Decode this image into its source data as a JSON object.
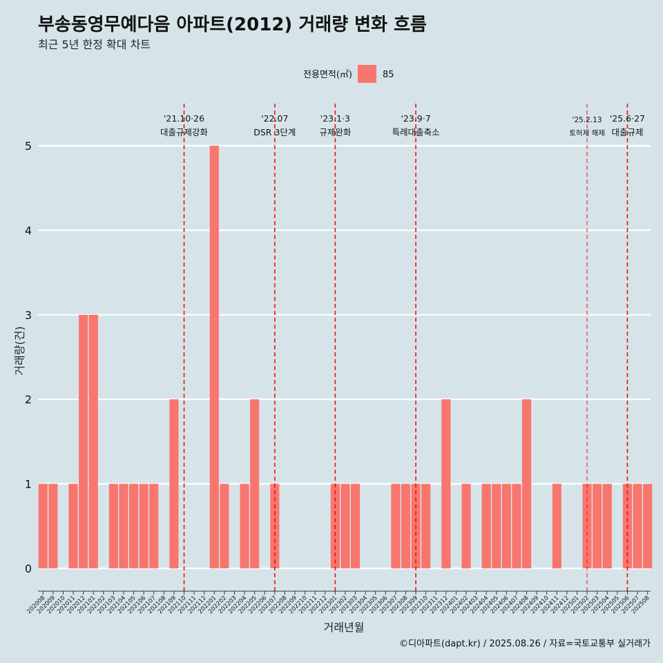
{
  "title": "부송동영무예다음 아파트(2012) 거래량 변화 흐름",
  "subtitle": "최근 5년 한정 확대 차트",
  "caption": "©디아파트(dapt.kr) / 2025.08.26 / 자료=국토교통부 실거래가",
  "legend": {
    "title": "전용면적(㎡)",
    "items": [
      {
        "label": "85",
        "color": "#f8766d"
      }
    ]
  },
  "chart_data": {
    "type": "bar",
    "xlabel": "거래년월",
    "ylabel": "거래량(건)",
    "ylim": [
      0,
      5
    ],
    "yticks": [
      0,
      1,
      2,
      3,
      4,
      5
    ],
    "grid": "horizontal",
    "legend_position": "top",
    "categories": [
      "202008",
      "202009",
      "202010",
      "202011",
      "202012",
      "202101",
      "202102",
      "202103",
      "202104",
      "202105",
      "202106",
      "202107",
      "202108",
      "202109",
      "202110",
      "202111",
      "202112",
      "202201",
      "202202",
      "202203",
      "202204",
      "202205",
      "202206",
      "202207",
      "202208",
      "202209",
      "202210",
      "202211",
      "202212",
      "202301",
      "202302",
      "202303",
      "202304",
      "202305",
      "202306",
      "202307",
      "202308",
      "202309",
      "202310",
      "202311",
      "202312",
      "202401",
      "202402",
      "202403",
      "202404",
      "202405",
      "202406",
      "202407",
      "202408",
      "202409",
      "202410",
      "202411",
      "202412",
      "202501",
      "202502",
      "202503",
      "202504",
      "202505",
      "202506",
      "202507",
      "202508"
    ],
    "series": [
      {
        "name": "85",
        "color": "#f8766d",
        "values": [
          1,
          1,
          0,
          1,
          3,
          3,
          0,
          1,
          1,
          1,
          1,
          1,
          0,
          2,
          0,
          0,
          0,
          5,
          1,
          0,
          1,
          2,
          0,
          1,
          0,
          0,
          0,
          0,
          0,
          1,
          1,
          1,
          0,
          0,
          0,
          1,
          1,
          1,
          1,
          0,
          2,
          0,
          1,
          0,
          1,
          1,
          1,
          1,
          2,
          0,
          0,
          1,
          0,
          0,
          1,
          1,
          1,
          0,
          1,
          1,
          1
        ]
      }
    ],
    "annotations": [
      {
        "date": "202110",
        "label_top": "'21.10·26",
        "label_bottom": "대출규제강화",
        "style": "major"
      },
      {
        "date": "202207",
        "label_top": "'22.07",
        "label_bottom": "DSR 3단계",
        "style": "major"
      },
      {
        "date": "202301",
        "label_top": "'23.1·3",
        "label_bottom": "규제완화",
        "style": "major"
      },
      {
        "date": "202309",
        "label_top": "'23.9·7",
        "label_bottom": "특례대출축소",
        "style": "major"
      },
      {
        "date": "202502",
        "label_top": "'25.2.13",
        "label_bottom": "토허제 해제",
        "style": "minor"
      },
      {
        "date": "202506",
        "label_top": "'25.6·27",
        "label_bottom": "대출규제",
        "style": "major"
      }
    ]
  }
}
